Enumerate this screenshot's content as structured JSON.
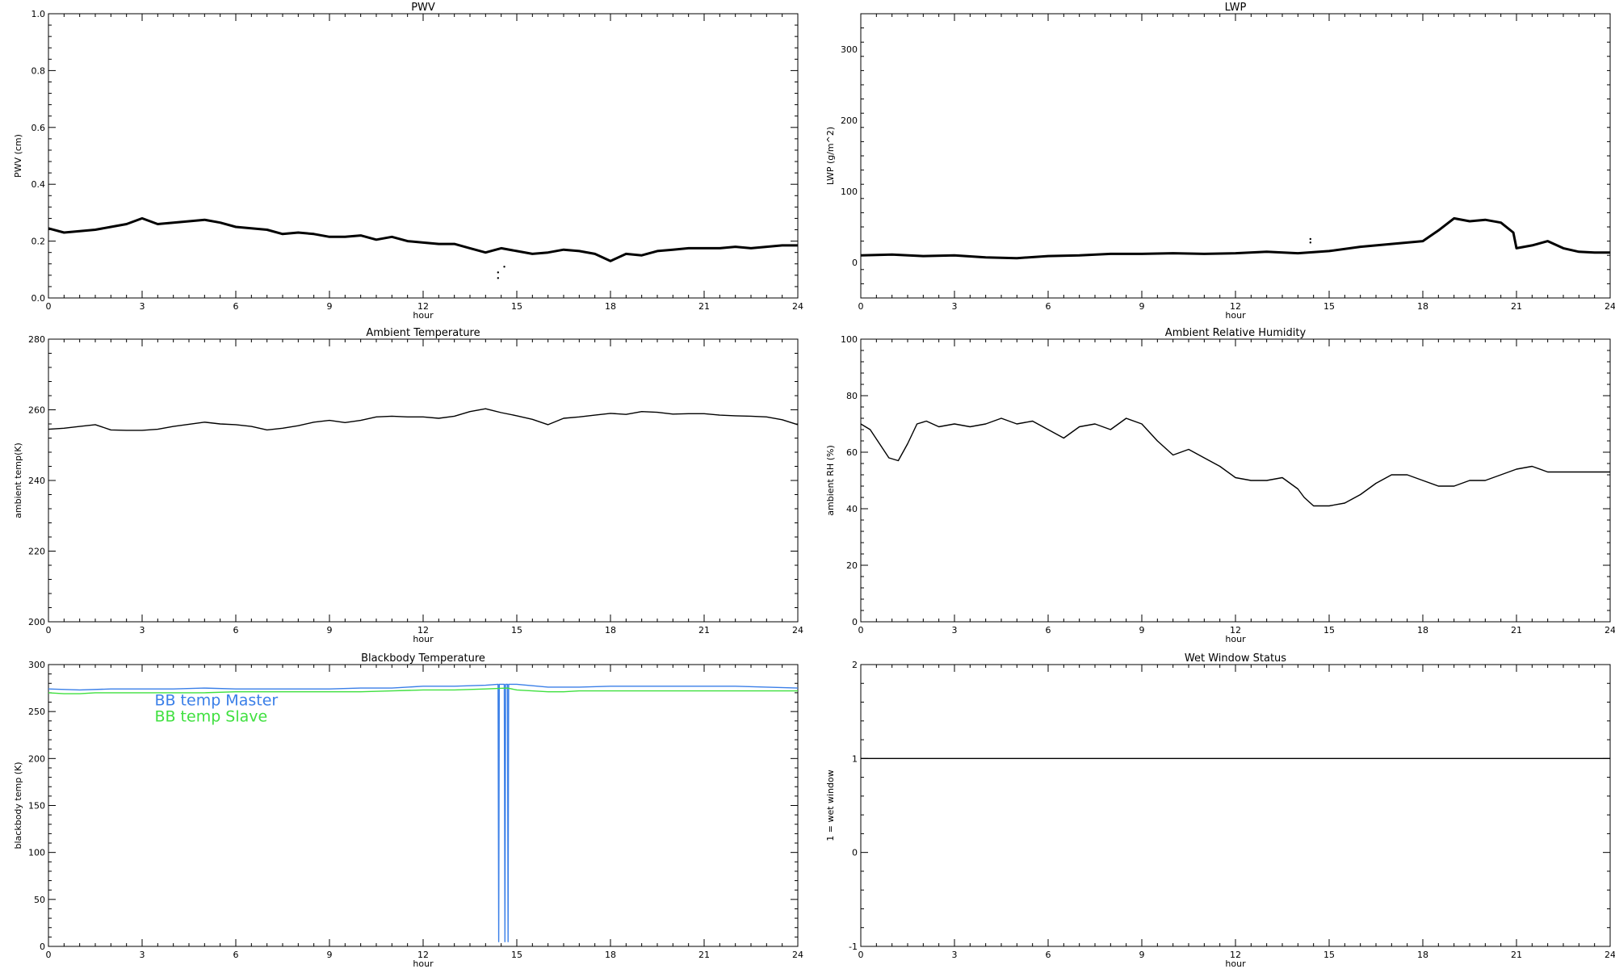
{
  "chart_data": [
    {
      "id": "pwv",
      "type": "scatter",
      "title": "PWV",
      "xlabel": "hour",
      "ylabel": "PWV (cm)",
      "xlim": [
        0,
        24
      ],
      "ylim": [
        0.0,
        1.0
      ],
      "xticks": [
        "0",
        "3",
        "6",
        "9",
        "12",
        "15",
        "18",
        "21",
        "24"
      ],
      "yticks": [
        0.0,
        0.2,
        0.4,
        0.6,
        0.8,
        1.0
      ],
      "ytick_labels": [
        "0.0",
        "0.2",
        "0.4",
        "0.6",
        "0.8",
        "1.0"
      ],
      "series": [
        {
          "color": "#000000",
          "x": [
            0,
            0.5,
            1,
            1.5,
            2,
            2.5,
            3,
            3.5,
            4,
            4.5,
            5,
            5.5,
            6,
            6.5,
            7,
            7.5,
            8,
            8.5,
            9,
            9.5,
            10,
            10.5,
            11,
            11.5,
            12,
            12.5,
            13,
            13.5,
            14,
            14.5,
            15,
            15.5,
            16,
            16.5,
            17,
            17.5,
            18,
            18.5,
            19,
            19.5,
            20,
            20.5,
            21,
            21.5,
            22,
            22.5,
            23,
            23.5,
            24
          ],
          "y": [
            0.245,
            0.23,
            0.235,
            0.24,
            0.25,
            0.26,
            0.28,
            0.26,
            0.265,
            0.27,
            0.275,
            0.265,
            0.25,
            0.245,
            0.24,
            0.225,
            0.23,
            0.225,
            0.215,
            0.215,
            0.22,
            0.205,
            0.215,
            0.2,
            0.195,
            0.19,
            0.19,
            0.175,
            0.16,
            0.175,
            0.165,
            0.155,
            0.16,
            0.17,
            0.165,
            0.155,
            0.13,
            0.155,
            0.15,
            0.165,
            0.17,
            0.175,
            0.175,
            0.175,
            0.18,
            0.175,
            0.18,
            0.185,
            0.185
          ]
        },
        {
          "color": "#000000",
          "points": true,
          "x": [
            14.4,
            14.4,
            14.6
          ],
          "y": [
            0.09,
            0.07,
            0.11
          ]
        }
      ]
    },
    {
      "id": "lwp",
      "type": "scatter",
      "title": "LWP",
      "xlabel": "hour",
      "ylabel": "LWP (g/m^2)",
      "xlim": [
        0,
        24
      ],
      "ylim": [
        -50,
        350
      ],
      "xticks": [
        "0",
        "3",
        "6",
        "9",
        "12",
        "15",
        "18",
        "21",
        "24"
      ],
      "yticks": [
        0,
        100,
        200,
        300
      ],
      "ytick_labels": [
        "0",
        "100",
        "200",
        "300"
      ],
      "series": [
        {
          "color": "#000000",
          "x": [
            0,
            1,
            2,
            3,
            4,
            5,
            6,
            7,
            8,
            9,
            10,
            11,
            12,
            13,
            14,
            15,
            16,
            17,
            18,
            18.5,
            19,
            19.5,
            20,
            20.5,
            20.9,
            21,
            21.5,
            22,
            22.5,
            23,
            23.5,
            24
          ],
          "y": [
            10,
            11,
            9,
            10,
            7,
            6,
            9,
            10,
            12,
            12,
            13,
            12,
            13,
            15,
            13,
            16,
            22,
            26,
            30,
            45,
            62,
            58,
            60,
            56,
            42,
            20,
            24,
            30,
            20,
            15,
            14,
            14
          ]
        },
        {
          "color": "#000000",
          "points": true,
          "x": [
            14.4,
            14.4
          ],
          "y": [
            33,
            28
          ]
        }
      ]
    },
    {
      "id": "ambient_temp",
      "type": "line",
      "title": "Ambient Temperature",
      "xlabel": "hour",
      "ylabel": "ambient temp(K)",
      "xlim": [
        0,
        24
      ],
      "ylim": [
        200,
        280
      ],
      "xticks": [
        "0",
        "3",
        "6",
        "9",
        "12",
        "15",
        "18",
        "21",
        "24"
      ],
      "yticks": [
        200,
        220,
        240,
        260,
        280
      ],
      "ytick_labels": [
        "200",
        "220",
        "240",
        "260",
        "280"
      ],
      "series": [
        {
          "color": "#000000",
          "x": [
            0,
            0.5,
            1,
            1.5,
            2,
            2.5,
            3,
            3.5,
            4,
            4.5,
            5,
            5.5,
            6,
            6.5,
            7,
            7.5,
            8,
            8.5,
            9,
            9.5,
            10,
            10.5,
            11,
            11.5,
            12,
            12.5,
            13,
            13.5,
            14,
            14.5,
            15,
            15.5,
            16,
            16.5,
            17,
            17.5,
            18,
            18.5,
            19,
            19.5,
            20,
            20.5,
            21,
            21.5,
            22,
            22.5,
            23,
            23.5,
            24
          ],
          "y": [
            254.5,
            254.8,
            255.3,
            255.8,
            254.3,
            254.2,
            254.2,
            254.5,
            255.3,
            255.9,
            256.5,
            256.0,
            255.8,
            255.3,
            254.3,
            254.8,
            255.5,
            256.5,
            257.0,
            256.4,
            257.0,
            258.0,
            258.2,
            258.0,
            258.0,
            257.6,
            258.2,
            259.5,
            260.3,
            259.2,
            258.3,
            257.3,
            255.8,
            257.6,
            258.0,
            258.5,
            259.0,
            258.7,
            259.5,
            259.3,
            258.8,
            258.9,
            258.9,
            258.5,
            258.3,
            258.2,
            258.0,
            257.2,
            255.8
          ]
        }
      ]
    },
    {
      "id": "ambient_rh",
      "type": "line",
      "title": "Ambient Relative Humidity",
      "xlabel": "hour",
      "ylabel": "ambient RH (%)",
      "xlim": [
        0,
        24
      ],
      "ylim": [
        0,
        100
      ],
      "xticks": [
        "0",
        "3",
        "6",
        "9",
        "12",
        "15",
        "18",
        "21",
        "24"
      ],
      "yticks": [
        0,
        20,
        40,
        60,
        80,
        100
      ],
      "ytick_labels": [
        "0",
        "20",
        "40",
        "60",
        "80",
        "100"
      ],
      "series": [
        {
          "color": "#000000",
          "x": [
            0,
            0.3,
            0.6,
            0.9,
            1.2,
            1.5,
            1.8,
            2.1,
            2.5,
            3,
            3.5,
            4,
            4.5,
            5,
            5.5,
            6,
            6.5,
            7,
            7.5,
            8,
            8.5,
            9,
            9.5,
            10,
            10.5,
            11,
            11.5,
            12,
            12.5,
            13,
            13.5,
            14,
            14.2,
            14.5,
            15,
            15.5,
            16,
            16.5,
            17,
            17.5,
            18,
            18.5,
            19,
            19.5,
            20,
            20.5,
            21,
            21.5,
            22,
            22.5,
            23,
            23.5,
            24
          ],
          "y": [
            70,
            68,
            63,
            58,
            57,
            63,
            70,
            71,
            69,
            70,
            69,
            70,
            72,
            70,
            71,
            68,
            65,
            69,
            70,
            68,
            72,
            70,
            64,
            59,
            61,
            58,
            55,
            51,
            50,
            50,
            51,
            47,
            44,
            41,
            41,
            42,
            45,
            49,
            52,
            52,
            50,
            48,
            48,
            50,
            50,
            52,
            54,
            55,
            53,
            53,
            53,
            53,
            53
          ]
        }
      ]
    },
    {
      "id": "bb_temp",
      "type": "line",
      "title": "Blackbody Temperature",
      "xlabel": "hour",
      "ylabel": "blackbody temp (K)",
      "xlim": [
        0,
        24
      ],
      "ylim": [
        0,
        300
      ],
      "xticks": [
        "0",
        "3",
        "6",
        "9",
        "12",
        "15",
        "18",
        "21",
        "24"
      ],
      "yticks": [
        0,
        50,
        100,
        150,
        200,
        250,
        300
      ],
      "ytick_labels": [
        "0",
        "50",
        "100",
        "150",
        "200",
        "250",
        "300"
      ],
      "legend": [
        {
          "name": "BB temp Master",
          "color": "#3a7fe8"
        },
        {
          "name": "BB temp Slave",
          "color": "#3fe03f"
        }
      ],
      "series": [
        {
          "name": "BB temp Master",
          "color": "#3a7fe8",
          "x": [
            0,
            1,
            2,
            3,
            4,
            5,
            6,
            7,
            8,
            9,
            10,
            11,
            12,
            13,
            14,
            14.4,
            14.42,
            14.44,
            14.6,
            14.62,
            14.64,
            14.7,
            14.72,
            14.74,
            15,
            16,
            17,
            18,
            19,
            20,
            21,
            22,
            23,
            24
          ],
          "y": [
            274,
            273,
            274,
            274,
            274,
            275,
            274,
            274,
            274,
            274,
            275,
            275,
            277,
            277,
            278,
            279,
            5,
            279,
            279,
            5,
            279,
            279,
            5,
            279,
            279,
            276,
            276,
            277,
            277,
            277,
            277,
            277,
            276,
            275
          ]
        },
        {
          "name": "BB temp Slave",
          "color": "#3fe03f",
          "x": [
            0,
            0.5,
            1,
            1.5,
            2,
            3,
            4,
            5,
            6,
            7,
            8,
            9,
            10,
            11,
            12,
            13,
            14,
            14.7,
            15,
            15.5,
            16,
            16.5,
            17,
            18,
            19,
            20,
            21,
            22,
            23,
            24
          ],
          "y": [
            270,
            269,
            269,
            270,
            270,
            270,
            270,
            270,
            271,
            271,
            271,
            271,
            271,
            272,
            273,
            273,
            274,
            275,
            273,
            272,
            271,
            271,
            272,
            272,
            272,
            272,
            272,
            272,
            272,
            272
          ]
        }
      ]
    },
    {
      "id": "wet_window",
      "type": "line",
      "title": "Wet Window Status",
      "xlabel": "hour",
      "ylabel": "1 = wet window",
      "xlim": [
        0,
        24
      ],
      "ylim": [
        -1,
        2
      ],
      "xticks": [
        "0",
        "3",
        "6",
        "9",
        "12",
        "15",
        "18",
        "21",
        "24"
      ],
      "yticks": [
        -1,
        0,
        1,
        2
      ],
      "ytick_labels": [
        "-1",
        "0",
        "1",
        "2"
      ],
      "series": [
        {
          "color": "#000000",
          "x": [
            0,
            24
          ],
          "y": [
            1,
            1
          ]
        }
      ]
    }
  ]
}
